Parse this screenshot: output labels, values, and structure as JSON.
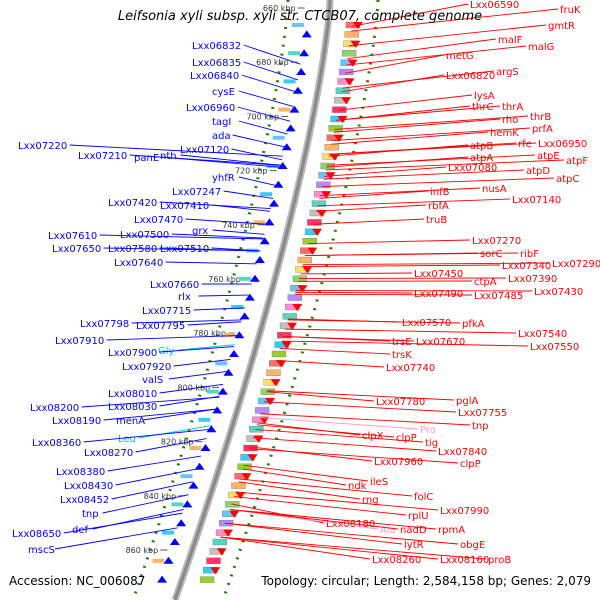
{
  "header": {
    "title": "Leifsonia xyli subsp. xyli str. CTCB07, complete genome"
  },
  "footer": {
    "accession": "Accession: NC_006087",
    "summary": "Topology: circular; Length: 2,584,158 bp; Genes: 2,079"
  },
  "colors": {
    "forward": "#0000ff",
    "reverse": "#ff0000",
    "trna_forward": "#00bfff",
    "trna_reverse": "#ff99cc",
    "backbone": "#888888",
    "gc_dots": "#2a7a00"
  },
  "ticks": [
    "660 kbp",
    "680 kbp",
    "700 kbp",
    "720 kbp",
    "740 kbp",
    "760 kbp",
    "780 kbp",
    "800 kbp",
    "820 kbp",
    "840 kbp",
    "860 kbp"
  ],
  "forward_labels": [
    [
      "Lxx06832",
      192,
      48,
      "gene"
    ],
    [
      "Lxx06835",
      192,
      65,
      "gene"
    ],
    [
      "Lxx06840",
      190,
      78,
      "gene"
    ],
    [
      "cysE",
      212,
      94,
      "gene"
    ],
    [
      "Lxx06960",
      186,
      110,
      "gene"
    ],
    [
      "tagI",
      212,
      124,
      "gene"
    ],
    [
      "ada",
      212,
      138,
      "gene"
    ],
    [
      "Lxx07120",
      180,
      152,
      "gene"
    ],
    [
      "Lxx07220",
      18,
      148,
      "gene"
    ],
    [
      "Lxx07210",
      78,
      158,
      "gene"
    ],
    [
      "panE",
      134,
      160,
      "gene"
    ],
    [
      "nth",
      160,
      158,
      "gene"
    ],
    [
      "yhfR",
      212,
      180,
      "gene"
    ],
    [
      "Lxx07247",
      172,
      194,
      "gene"
    ],
    [
      "Lxx07420",
      108,
      205,
      "gene"
    ],
    [
      "Lxx07410",
      160,
      208,
      "gene"
    ],
    [
      "Lxx07470",
      134,
      222,
      "gene"
    ],
    [
      "grx",
      192,
      233,
      "gene"
    ],
    [
      "Lxx07610",
      48,
      238,
      "gene"
    ],
    [
      "Lxx07500",
      120,
      237,
      "gene"
    ],
    [
      "Lxx07650",
      52,
      251,
      "gene"
    ],
    [
      "Lxx07580",
      108,
      251,
      "gene"
    ],
    [
      "Lxx07510",
      160,
      251,
      "gene"
    ],
    [
      "Lxx07640",
      114,
      265,
      "gene"
    ],
    [
      "Lxx07660",
      150,
      287,
      "gene"
    ],
    [
      "rlx",
      178,
      299,
      "gene"
    ],
    [
      "Lxx07715",
      142,
      313,
      "gene"
    ],
    [
      "Lxx07798",
      80,
      326,
      "gene"
    ],
    [
      "Lxx07795",
      136,
      328,
      "gene"
    ],
    [
      "Lxx07910",
      55,
      343,
      "gene"
    ],
    [
      "Gly",
      158,
      353,
      "trna"
    ],
    [
      "Lxx07900",
      108,
      355,
      "gene"
    ],
    [
      "Lxx07920",
      122,
      369,
      "gene"
    ],
    [
      "valS",
      142,
      382,
      "gene"
    ],
    [
      "Lxx08010",
      108,
      396,
      "gene"
    ],
    [
      "Lxx08200",
      30,
      410,
      "gene"
    ],
    [
      "Lxx08030",
      108,
      409,
      "gene"
    ],
    [
      "Lxx08190",
      52,
      423,
      "gene"
    ],
    [
      "menA",
      116,
      423,
      "gene"
    ],
    [
      "Leu",
      118,
      441,
      "trna"
    ],
    [
      "Lxx08360",
      32,
      445,
      "gene"
    ],
    [
      "Lxx08270",
      84,
      455,
      "gene"
    ],
    [
      "Lxx08380",
      56,
      474,
      "gene"
    ],
    [
      "Lxx08430",
      64,
      488,
      "gene"
    ],
    [
      "Lxx08452",
      60,
      502,
      "gene"
    ],
    [
      "tnp",
      82,
      516,
      "gene"
    ],
    [
      "def",
      72,
      532,
      "gene"
    ],
    [
      "Lxx08650",
      12,
      536,
      "gene"
    ],
    [
      "mscS",
      28,
      552,
      "gene"
    ]
  ],
  "reverse_labels": [
    [
      "Lxx06590",
      470,
      7,
      "gene"
    ],
    [
      "fruK",
      560,
      12,
      "gene"
    ],
    [
      "gmtR",
      548,
      28,
      "gene"
    ],
    [
      "malF",
      498,
      42,
      "gene"
    ],
    [
      "malG",
      528,
      49,
      "gene"
    ],
    [
      "metG",
      446,
      58,
      "gene"
    ],
    [
      "Lxx06820",
      446,
      78,
      "gene"
    ],
    [
      "argS",
      496,
      74,
      "gene"
    ],
    [
      "lysA",
      474,
      98,
      "gene"
    ],
    [
      "thrC",
      472,
      109,
      "gene"
    ],
    [
      "thrA",
      502,
      109,
      "gene"
    ],
    [
      "rho",
      502,
      122,
      "gene"
    ],
    [
      "thrB",
      530,
      119,
      "gene"
    ],
    [
      "prfA",
      532,
      131,
      "gene"
    ],
    [
      "hemK",
      490,
      135,
      "gene"
    ],
    [
      "rfe",
      518,
      146,
      "gene"
    ],
    [
      "Lxx06950",
      538,
      146,
      "gene"
    ],
    [
      "atpB",
      470,
      148,
      "gene"
    ],
    [
      "atpE",
      537,
      158,
      "gene"
    ],
    [
      "atpA",
      470,
      160,
      "gene"
    ],
    [
      "atpF",
      566,
      163,
      "gene"
    ],
    [
      "Lxx07080",
      448,
      170,
      "gene"
    ],
    [
      "atpD",
      526,
      173,
      "gene"
    ],
    [
      "atpC",
      556,
      181,
      "gene"
    ],
    [
      "nusA",
      482,
      191,
      "gene"
    ],
    [
      "infB",
      430,
      194,
      "gene"
    ],
    [
      "rbfA",
      428,
      208,
      "gene"
    ],
    [
      "Lxx07140",
      512,
      202,
      "gene"
    ],
    [
      "truB",
      426,
      222,
      "gene"
    ],
    [
      "Lxx07270",
      472,
      243,
      "gene"
    ],
    [
      "sorC",
      480,
      256,
      "gene"
    ],
    [
      "ribF",
      520,
      256,
      "gene"
    ],
    [
      "Lxx07340",
      502,
      268,
      "gene"
    ],
    [
      "Lxx07290",
      552,
      266,
      "gene"
    ],
    [
      "Lxx07450",
      414,
      276,
      "gene"
    ],
    [
      "ctpA",
      474,
      284,
      "gene"
    ],
    [
      "Lxx07390",
      508,
      281,
      "gene"
    ],
    [
      "Lxx07430",
      534,
      294,
      "gene"
    ],
    [
      "Lxx07490",
      414,
      296,
      "gene"
    ],
    [
      "Lxx07485",
      474,
      298,
      "gene"
    ],
    [
      "pfkA",
      462,
      326,
      "gene"
    ],
    [
      "Lxx07570",
      402,
      325,
      "gene"
    ],
    [
      "Lxx07540",
      518,
      336,
      "gene"
    ],
    [
      "Lxx07670",
      416,
      344,
      "gene"
    ],
    [
      "trsE",
      392,
      344,
      "gene"
    ],
    [
      "Lxx07550",
      530,
      349,
      "gene"
    ],
    [
      "trsK",
      392,
      357,
      "gene"
    ],
    [
      "Lxx07740",
      386,
      370,
      "gene"
    ],
    [
      "pglA",
      456,
      403,
      "gene"
    ],
    [
      "Lxx07780",
      376,
      404,
      "gene"
    ],
    [
      "Lxx07755",
      458,
      415,
      "gene"
    ],
    [
      "Pro",
      420,
      432,
      "trna"
    ],
    [
      "clpX",
      362,
      438,
      "gene"
    ],
    [
      "clpP",
      396,
      440,
      "gene"
    ],
    [
      "tig",
      425,
      445,
      "gene"
    ],
    [
      "tnp",
      472,
      428,
      "gene"
    ],
    [
      "Lxx07840",
      438,
      454,
      "gene"
    ],
    [
      "clpP",
      460,
      466,
      "gene"
    ],
    [
      "Lxx07960",
      374,
      464,
      "gene"
    ],
    [
      "ileS",
      370,
      484,
      "gene"
    ],
    [
      "ndk",
      348,
      488,
      "gene"
    ],
    [
      "rng",
      362,
      502,
      "gene"
    ],
    [
      "folC",
      414,
      499,
      "gene"
    ],
    [
      "Lxx07990",
      440,
      513,
      "gene"
    ],
    [
      "rplU",
      408,
      518,
      "gene"
    ],
    [
      "rpmA",
      438,
      532,
      "gene"
    ],
    [
      "Lxx08180",
      326,
      526,
      "gene"
    ],
    [
      "Ala",
      380,
      532,
      "trna"
    ],
    [
      "nadD",
      400,
      532,
      "gene"
    ],
    [
      "obgE",
      460,
      547,
      "gene"
    ],
    [
      "lytR",
      404,
      547,
      "gene"
    ],
    [
      "Lxx08160",
      440,
      562,
      "gene"
    ],
    [
      "proB",
      488,
      562,
      "gene"
    ],
    [
      "Lxx08260",
      372,
      562,
      "gene"
    ]
  ]
}
